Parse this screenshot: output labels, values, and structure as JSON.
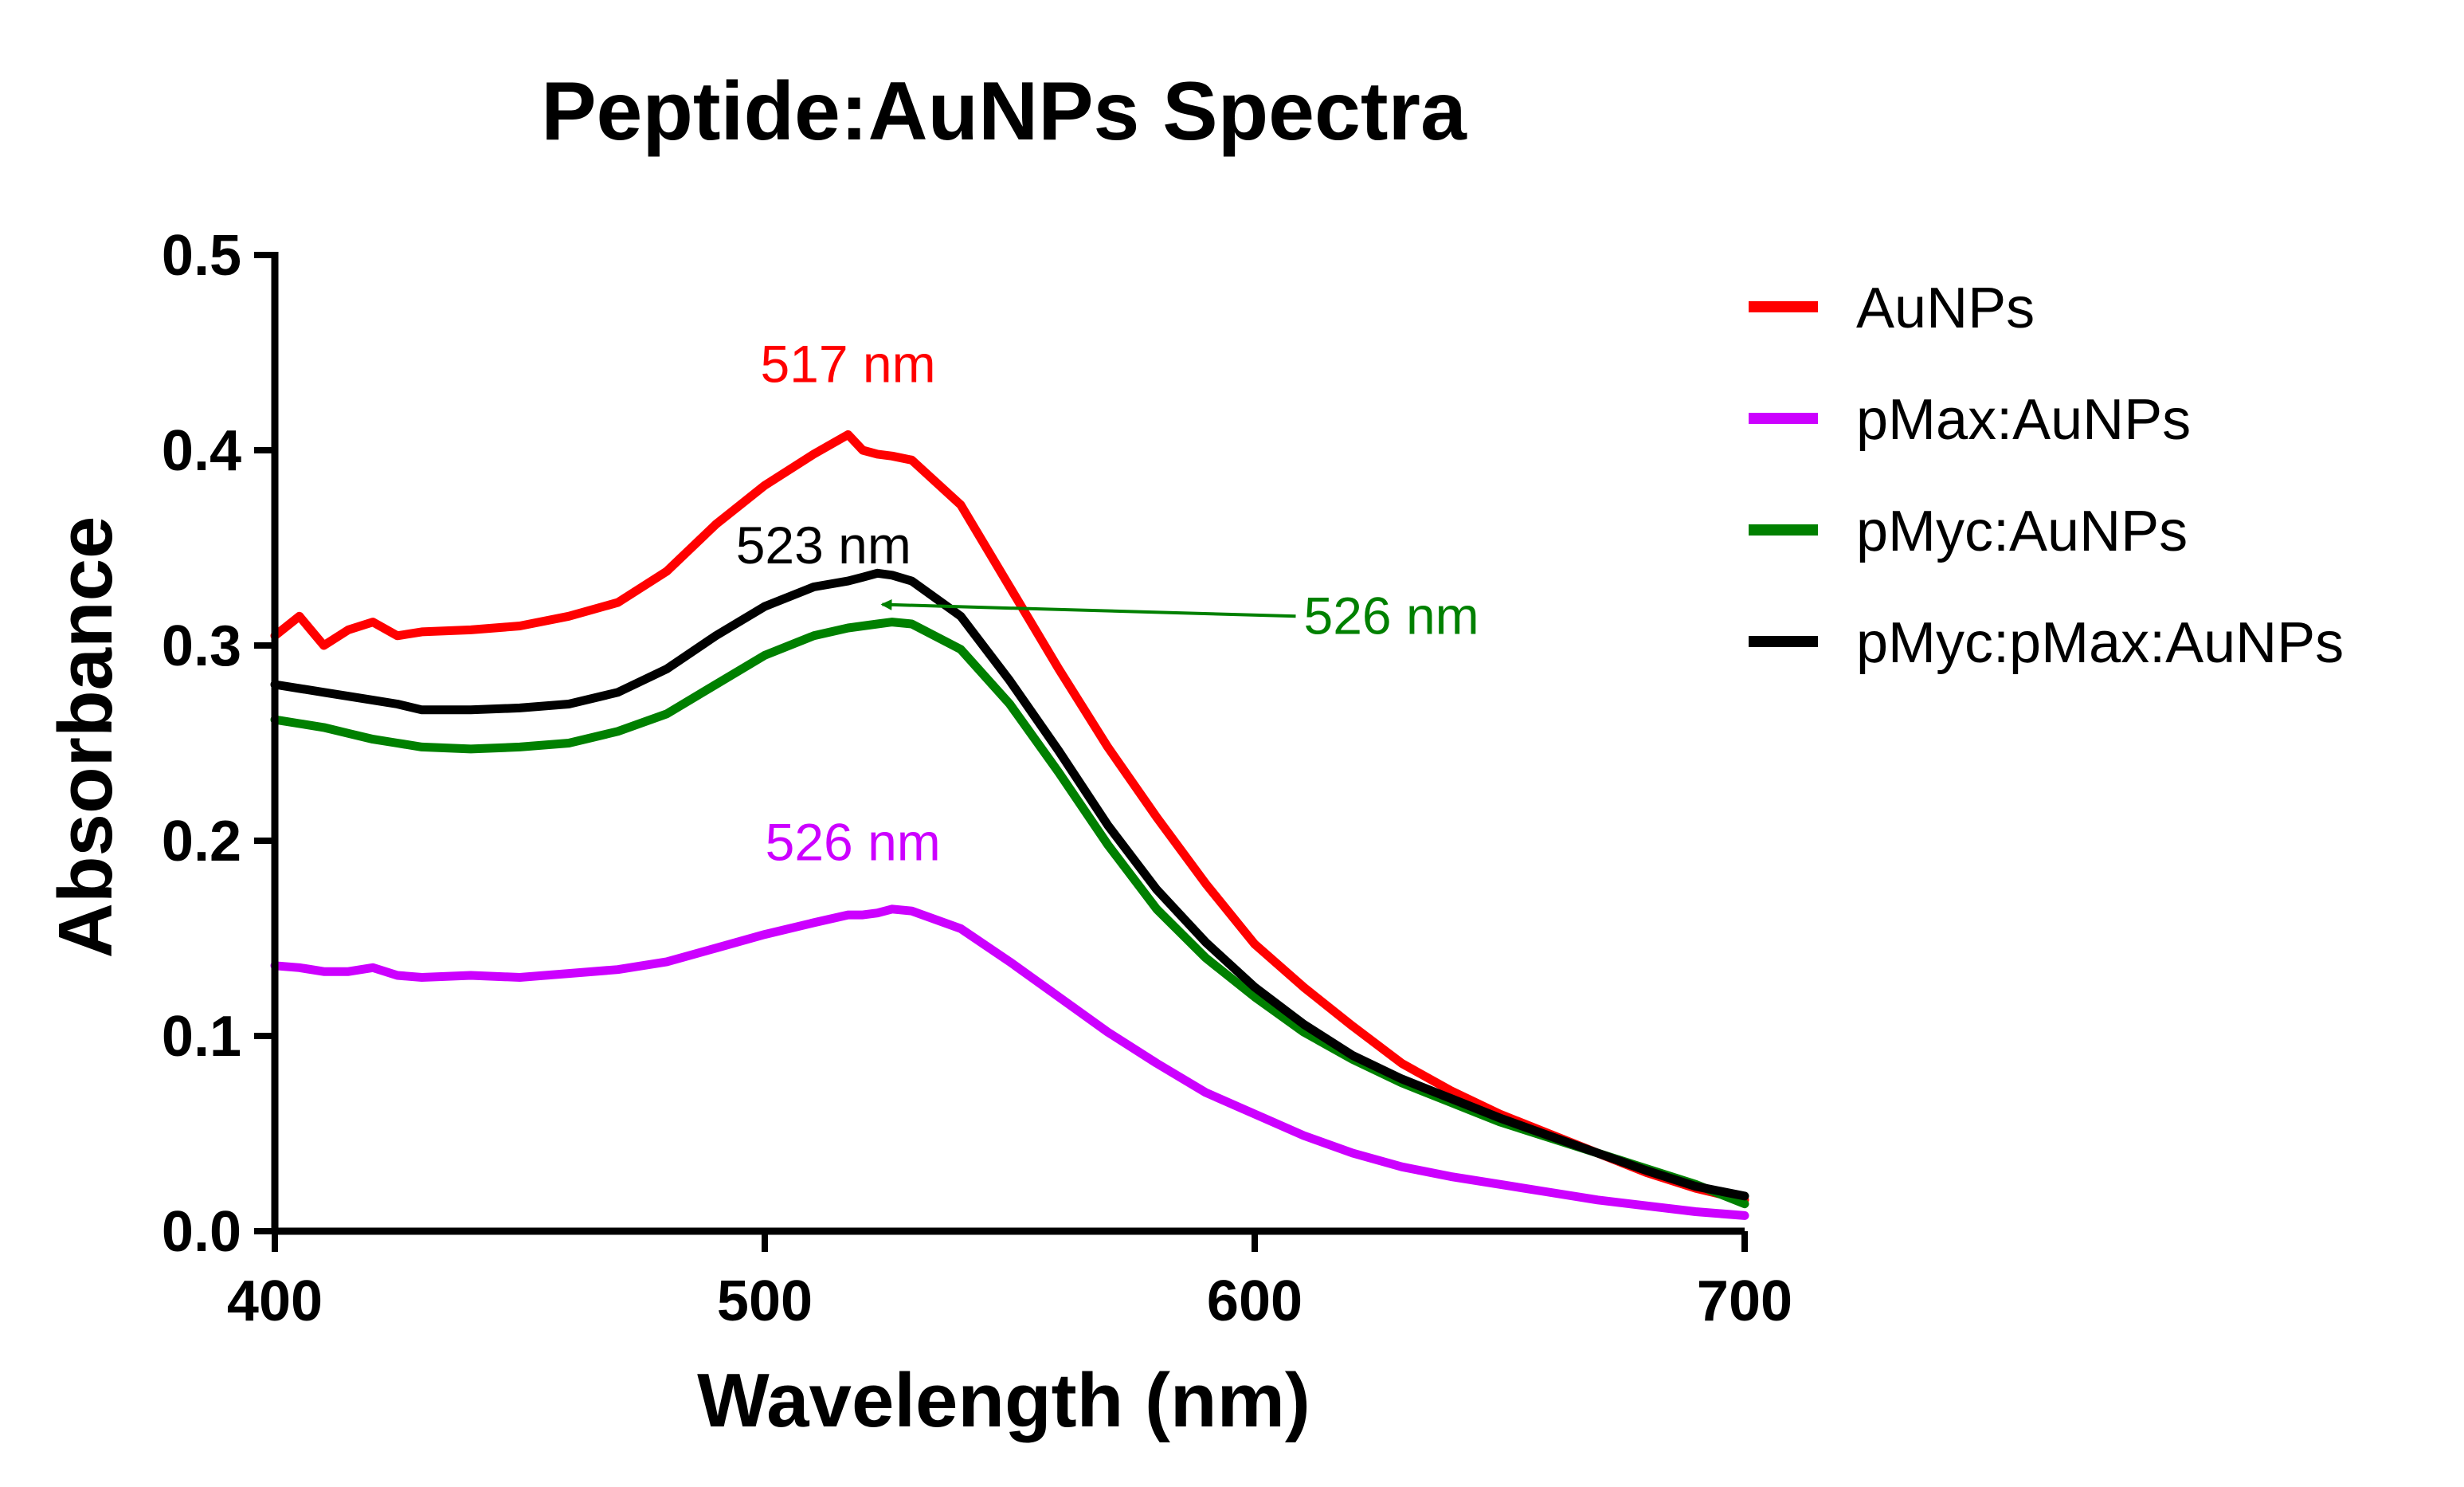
{
  "chart_data": {
    "type": "line",
    "title": "Peptide:AuNPs Spectra",
    "xlabel": "Wavelength (nm)",
    "ylabel": "Absorbance",
    "xlim": [
      400,
      700
    ],
    "ylim": [
      0,
      0.5
    ],
    "xticks": [
      400,
      500,
      600,
      700
    ],
    "xtick_labels": [
      "400",
      "500",
      "600",
      "700"
    ],
    "yticks": [
      0,
      0.1,
      0.2,
      0.3,
      0.4,
      0.5
    ],
    "ytick_labels": [
      "0.0",
      "0.1",
      "0.2",
      "0.3",
      "0.4",
      "0.5"
    ],
    "legend_position": "right",
    "x": [
      400,
      405,
      410,
      415,
      420,
      425,
      430,
      440,
      450,
      460,
      470,
      480,
      490,
      500,
      510,
      517,
      520,
      523,
      526,
      530,
      540,
      550,
      560,
      570,
      580,
      590,
      600,
      610,
      620,
      630,
      640,
      650,
      660,
      670,
      680,
      690,
      700
    ],
    "series": [
      {
        "name": "AuNPs",
        "color": "#ff0000",
        "values": [
          0.305,
          0.315,
          0.3,
          0.308,
          0.312,
          0.305,
          0.307,
          0.308,
          0.31,
          0.315,
          0.322,
          0.338,
          0.362,
          0.382,
          0.398,
          0.408,
          0.4,
          0.398,
          0.397,
          0.395,
          0.372,
          0.33,
          0.288,
          0.248,
          0.212,
          0.178,
          0.147,
          0.125,
          0.105,
          0.086,
          0.072,
          0.06,
          0.05,
          0.04,
          0.03,
          0.022,
          0.016
        ]
      },
      {
        "name": "pMax:AuNPs",
        "color": "#cc00ff",
        "values": [
          0.136,
          0.135,
          0.133,
          0.133,
          0.135,
          0.131,
          0.13,
          0.131,
          0.13,
          0.132,
          0.134,
          0.138,
          0.145,
          0.152,
          0.158,
          0.162,
          0.162,
          0.163,
          0.165,
          0.164,
          0.155,
          0.138,
          0.12,
          0.102,
          0.086,
          0.071,
          0.06,
          0.049,
          0.04,
          0.033,
          0.028,
          0.024,
          0.02,
          0.016,
          0.013,
          0.01,
          0.008
        ]
      },
      {
        "name": "pMyc:AuNPs",
        "color": "#008000",
        "values": [
          0.262,
          0.26,
          0.258,
          0.255,
          0.252,
          0.25,
          0.248,
          0.247,
          0.248,
          0.25,
          0.256,
          0.265,
          0.28,
          0.295,
          0.305,
          0.309,
          0.31,
          0.311,
          0.312,
          0.311,
          0.298,
          0.27,
          0.235,
          0.198,
          0.165,
          0.14,
          0.12,
          0.102,
          0.088,
          0.076,
          0.066,
          0.056,
          0.048,
          0.04,
          0.032,
          0.024,
          0.014
        ]
      },
      {
        "name": "pMyc:pMax:AuNPs",
        "color": "#000000",
        "values": [
          0.28,
          0.278,
          0.276,
          0.274,
          0.272,
          0.27,
          0.267,
          0.267,
          0.268,
          0.27,
          0.276,
          0.288,
          0.305,
          0.32,
          0.33,
          0.333,
          0.335,
          0.337,
          0.336,
          0.333,
          0.315,
          0.282,
          0.246,
          0.208,
          0.175,
          0.148,
          0.125,
          0.106,
          0.09,
          0.078,
          0.068,
          0.058,
          0.049,
          0.04,
          0.031,
          0.023,
          0.018
        ]
      }
    ],
    "annotations": [
      {
        "text": "517 nm",
        "color": "#ff0000",
        "x": 517,
        "y": 0.435
      },
      {
        "text": "523 nm",
        "color": "#000000",
        "x": 512,
        "y": 0.342
      },
      {
        "text": "526 nm",
        "color": "#008000",
        "x": 610,
        "y": 0.306,
        "arrow_to": [
          523,
          0.321
        ]
      },
      {
        "text": "526 nm",
        "color": "#cc00ff",
        "x": 518,
        "y": 0.19
      }
    ]
  }
}
